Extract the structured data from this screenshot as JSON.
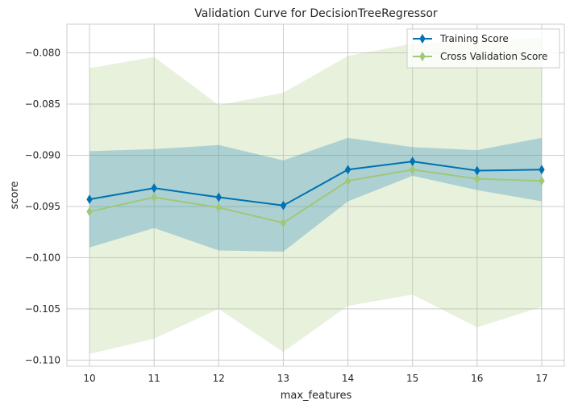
{
  "chart_data": {
    "type": "line",
    "title": "Validation Curve for DecisionTreeRegressor",
    "xlabel": "max_features",
    "ylabel": "score",
    "xlim": [
      9.65,
      17.35
    ],
    "ylim": [
      -0.1106,
      -0.0772
    ],
    "x": [
      10,
      11,
      12,
      13,
      14,
      15,
      16,
      17
    ],
    "xticks": [
      "10",
      "11",
      "12",
      "13",
      "14",
      "15",
      "16",
      "17"
    ],
    "yticks": [
      -0.08,
      -0.085,
      -0.09,
      -0.095,
      -0.1,
      -0.105,
      -0.11
    ],
    "ytick_labels": [
      "−0.080",
      "−0.085",
      "−0.090",
      "−0.095",
      "−0.100",
      "−0.105",
      "−0.110"
    ],
    "grid": true,
    "legend_position": "top-right",
    "series": [
      {
        "name": "Training Score",
        "color": "#0072b2",
        "band_color": "#0072b2",
        "marker": "diamond",
        "values": [
          -0.0943,
          -0.0932,
          -0.0941,
          -0.0949,
          -0.0914,
          -0.0906,
          -0.0915,
          -0.0914
        ],
        "upper": [
          -0.0896,
          -0.0894,
          -0.089,
          -0.0905,
          -0.0883,
          -0.0892,
          -0.0895,
          -0.0883
        ],
        "lower": [
          -0.099,
          -0.0971,
          -0.0993,
          -0.0994,
          -0.0945,
          -0.092,
          -0.0934,
          -0.0945
        ]
      },
      {
        "name": "Cross Validation Score",
        "color": "#a1c779",
        "band_color": "#a8cc80",
        "marker": "diamond",
        "values": [
          -0.0955,
          -0.0941,
          -0.0951,
          -0.0966,
          -0.0925,
          -0.0914,
          -0.0923,
          -0.0925
        ],
        "upper": [
          -0.0815,
          -0.0804,
          -0.0851,
          -0.0839,
          -0.0803,
          -0.0791,
          -0.0789,
          -0.0785
        ],
        "lower": [
          -0.1094,
          -0.1079,
          -0.105,
          -0.1092,
          -0.1047,
          -0.1036,
          -0.1068,
          -0.1048
        ]
      }
    ]
  }
}
